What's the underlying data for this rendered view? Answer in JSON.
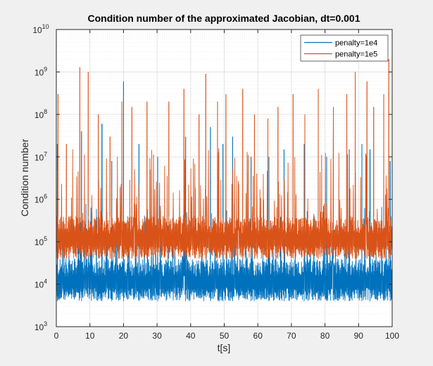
{
  "chart_data": {
    "type": "line",
    "title": "Condition number of the approximated Jacobian, dt=0.001",
    "xlabel": "t[s]",
    "ylabel": "Condition number",
    "xlim": [
      0,
      100
    ],
    "ylim": [
      1000,
      10000000000
    ],
    "yscale": "log",
    "grid": true,
    "minor_grid": true,
    "legend_position": "top-right",
    "x_ticks": [
      {
        "value": 0,
        "label": "0"
      },
      {
        "value": 10,
        "label": "10"
      },
      {
        "value": 20,
        "label": "20"
      },
      {
        "value": 30,
        "label": "30"
      },
      {
        "value": 40,
        "label": "40"
      },
      {
        "value": 50,
        "label": "50"
      },
      {
        "value": 60,
        "label": "60"
      },
      {
        "value": 70,
        "label": "70"
      },
      {
        "value": 80,
        "label": "80"
      },
      {
        "value": 90,
        "label": "90"
      },
      {
        "value": 100,
        "label": "100"
      }
    ],
    "y_ticks": [
      {
        "value": 1000,
        "base": "10",
        "exp": "3"
      },
      {
        "value": 10000,
        "base": "10",
        "exp": "4"
      },
      {
        "value": 100000,
        "base": "10",
        "exp": "5"
      },
      {
        "value": 1000000,
        "base": "10",
        "exp": "6"
      },
      {
        "value": 10000000,
        "base": "10",
        "exp": "7"
      },
      {
        "value": 100000000,
        "base": "10",
        "exp": "8"
      },
      {
        "value": 1000000000,
        "base": "10",
        "exp": "9"
      },
      {
        "value": 10000000000,
        "base": "10",
        "exp": "10"
      }
    ],
    "series": [
      {
        "name": "penalty=1e4",
        "color": "#0072BD",
        "band_low": 4000,
        "band_high": 40000,
        "x": [
          0,
          5,
          10,
          15,
          20,
          25,
          30,
          35,
          40,
          45,
          50,
          55,
          60,
          65,
          70,
          75,
          80,
          85,
          90,
          95,
          100
        ],
        "median": [
          9000,
          10000,
          10000,
          10000,
          10000,
          10000,
          10000,
          10000,
          10000,
          10000,
          10000,
          10000,
          10000,
          10000,
          10000,
          10000,
          10000,
          10000,
          10000,
          10000,
          10000
        ],
        "peak_x": [
          0.3,
          7.5,
          13.6,
          16.5,
          20.0,
          24.6,
          30.2,
          38.5,
          45.9,
          49.6,
          52.5,
          58.0,
          63.3,
          67.8,
          73.8,
          80.5,
          87.2,
          91.0,
          93.4,
          99.4
        ],
        "peak_y": [
          20000000,
          40000000,
          60000000,
          8000000,
          600000000,
          20000000,
          10000000,
          30000000,
          50000000,
          20000000,
          30000000,
          10000000,
          10000000,
          15000000,
          20000000,
          10000000,
          15000000,
          20000000,
          15000000,
          8000000
        ]
      },
      {
        "name": "penalty=1e5",
        "color": "#D95319",
        "band_low": 40000,
        "band_high": 400000,
        "x": [
          0,
          5,
          10,
          15,
          20,
          25,
          30,
          35,
          40,
          45,
          50,
          55,
          60,
          65,
          70,
          75,
          80,
          85,
          90,
          95,
          100
        ],
        "median": [
          100000,
          100000,
          100000,
          100000,
          100000,
          100000,
          100000,
          100000,
          100000,
          100000,
          100000,
          100000,
          100000,
          100000,
          100000,
          100000,
          100000,
          100000,
          100000,
          100000,
          100000
        ],
        "peak_x": [
          0.5,
          3.0,
          7.0,
          9.5,
          12.5,
          16.0,
          19.5,
          22.5,
          27.0,
          33.5,
          38.0,
          42.5,
          44.5,
          48.0,
          50.5,
          55.5,
          59.0,
          63.0,
          66.0,
          70.5,
          74.0,
          78.0,
          82.5,
          86.5,
          89.0,
          92.5,
          94.5,
          97.5,
          99.0
        ],
        "peak_y": [
          300000000,
          20000000,
          1300000000,
          1000000000,
          100000000,
          30000000,
          200000000,
          150000000,
          200000000,
          200000000,
          400000000,
          100000000,
          900000000,
          200000000,
          300000000,
          400000000,
          100000000,
          80000000,
          150000000,
          300000000,
          100000000,
          400000000,
          150000000,
          300000000,
          1000000000,
          600000000,
          150000000,
          300000000,
          2000000000
        ]
      }
    ]
  }
}
